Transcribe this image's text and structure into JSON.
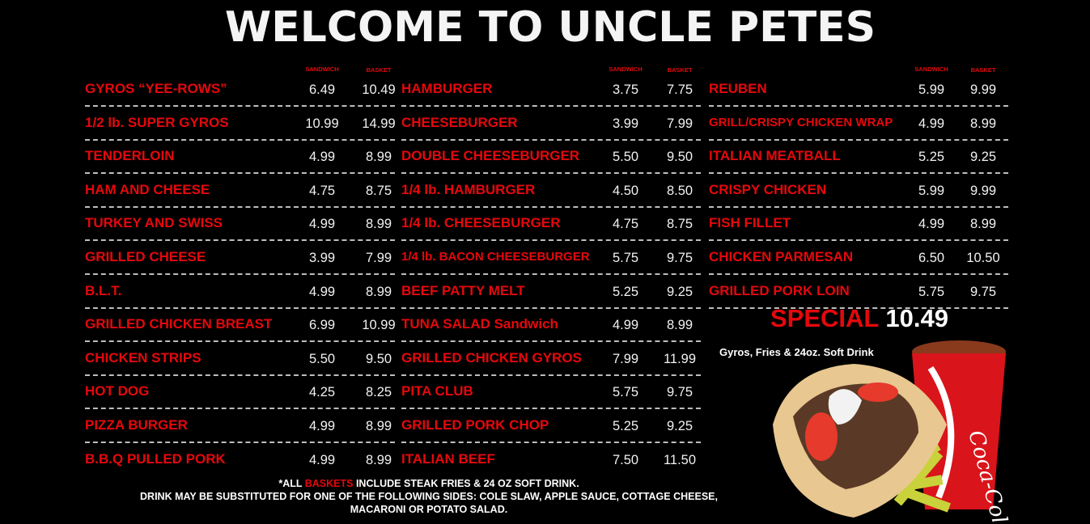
{
  "title": "WELCOME TO UNCLE PETES",
  "column_headers": {
    "sandwich": "SANDWICH",
    "basket": "BASKET"
  },
  "columns": [
    {
      "items": [
        {
          "name": "GYROS “YEE-ROWS”",
          "sandwich": "6.49",
          "basket": "10.49"
        },
        {
          "name": "1/2 lb. SUPER GYROS",
          "sandwich": "10.99",
          "basket": "14.99"
        },
        {
          "name": "TENDERLOIN",
          "sandwich": "4.99",
          "basket": "8.99"
        },
        {
          "name": "HAM AND CHEESE",
          "sandwich": "4.75",
          "basket": "8.75"
        },
        {
          "name": "TURKEY AND SWISS",
          "sandwich": "4.99",
          "basket": "8.99"
        },
        {
          "name": "GRILLED CHEESE",
          "sandwich": "3.99",
          "basket": "7.99"
        },
        {
          "name": "B.L.T.",
          "sandwich": "4.99",
          "basket": "8.99"
        },
        {
          "name": "GRILLED CHICKEN BREAST",
          "sandwich": "6.99",
          "basket": "10.99"
        },
        {
          "name": "CHICKEN STRIPS",
          "sandwich": "5.50",
          "basket": "9.50"
        },
        {
          "name": "HOT DOG",
          "sandwich": "4.25",
          "basket": "8.25"
        },
        {
          "name": "PIZZA BURGER",
          "sandwich": "4.99",
          "basket": "8.99"
        },
        {
          "name": "B.B.Q PULLED PORK",
          "sandwich": "4.99",
          "basket": "8.99"
        }
      ]
    },
    {
      "items": [
        {
          "name": "HAMBURGER",
          "sandwich": "3.75",
          "basket": "7.75"
        },
        {
          "name": "CHEESEBURGER",
          "sandwich": "3.99",
          "basket": "7.99"
        },
        {
          "name": "DOUBLE CHEESEBURGER",
          "sandwich": "5.50",
          "basket": "9.50"
        },
        {
          "name": "1/4 lb. HAMBURGER",
          "sandwich": "4.50",
          "basket": "8.50"
        },
        {
          "name": "1/4 lb. CHEESEBURGER",
          "sandwich": "4.75",
          "basket": "8.75"
        },
        {
          "name": "1/4 lb. BACON CHEESEBURGER",
          "sandwich": "5.75",
          "basket": "9.75",
          "small": true
        },
        {
          "name": "BEEF PATTY MELT",
          "sandwich": "5.25",
          "basket": "9.25"
        },
        {
          "name": "TUNA SALAD Sandwich",
          "sandwich": "4.99",
          "basket": "8.99"
        },
        {
          "name": "GRILLED CHICKEN GYROS",
          "sandwich": "7.99",
          "basket": "11.99"
        },
        {
          "name": "PITA CLUB",
          "sandwich": "5.75",
          "basket": "9.75"
        },
        {
          "name": "GRILLED PORK CHOP",
          "sandwich": "5.25",
          "basket": "9.25"
        },
        {
          "name": "ITALIAN BEEF",
          "sandwich": "7.50",
          "basket": "11.50"
        }
      ]
    },
    {
      "items": [
        {
          "name": "REUBEN",
          "sandwich": "5.99",
          "basket": "9.99"
        },
        {
          "name": "GRILL/CRISPY CHICKEN WRAP",
          "sandwich": "4.99",
          "basket": "8.99",
          "small": true
        },
        {
          "name": "ITALIAN MEATBALL",
          "sandwich": "5.25",
          "basket": "9.25"
        },
        {
          "name": "CRISPY CHICKEN",
          "sandwich": "5.99",
          "basket": "9.99"
        },
        {
          "name": "FISH FILLET",
          "sandwich": "4.99",
          "basket": "8.99"
        },
        {
          "name": "CHICKEN PARMESAN",
          "sandwich": "6.50",
          "basket": "10.50"
        },
        {
          "name": "GRILLED PORK LOIN",
          "sandwich": "5.75",
          "basket": "9.75"
        }
      ]
    }
  ],
  "special": {
    "label": "SPECIAL",
    "price": "10.49",
    "description": "Gyros, Fries & 24oz. Soft Drink",
    "cup_brand": "Coca-Cola"
  },
  "footer": {
    "line1_prefix": "*ALL ",
    "line1_highlight": "BASKETS",
    "line1_suffix": " INCLUDE STEAK FRIES & 24 OZ SOFT DRINK.",
    "line2": "DRINK MAY BE SUBSTITUTED FOR ONE OF THE FOLLOWING SIDES: COLE SLAW, APPLE SAUCE, COTTAGE CHEESE,",
    "line3": "MACARONI OR POTATO SALAD."
  },
  "colors": {
    "accent_red": "#e5080c",
    "background": "#000000",
    "text": "#ffffff"
  }
}
